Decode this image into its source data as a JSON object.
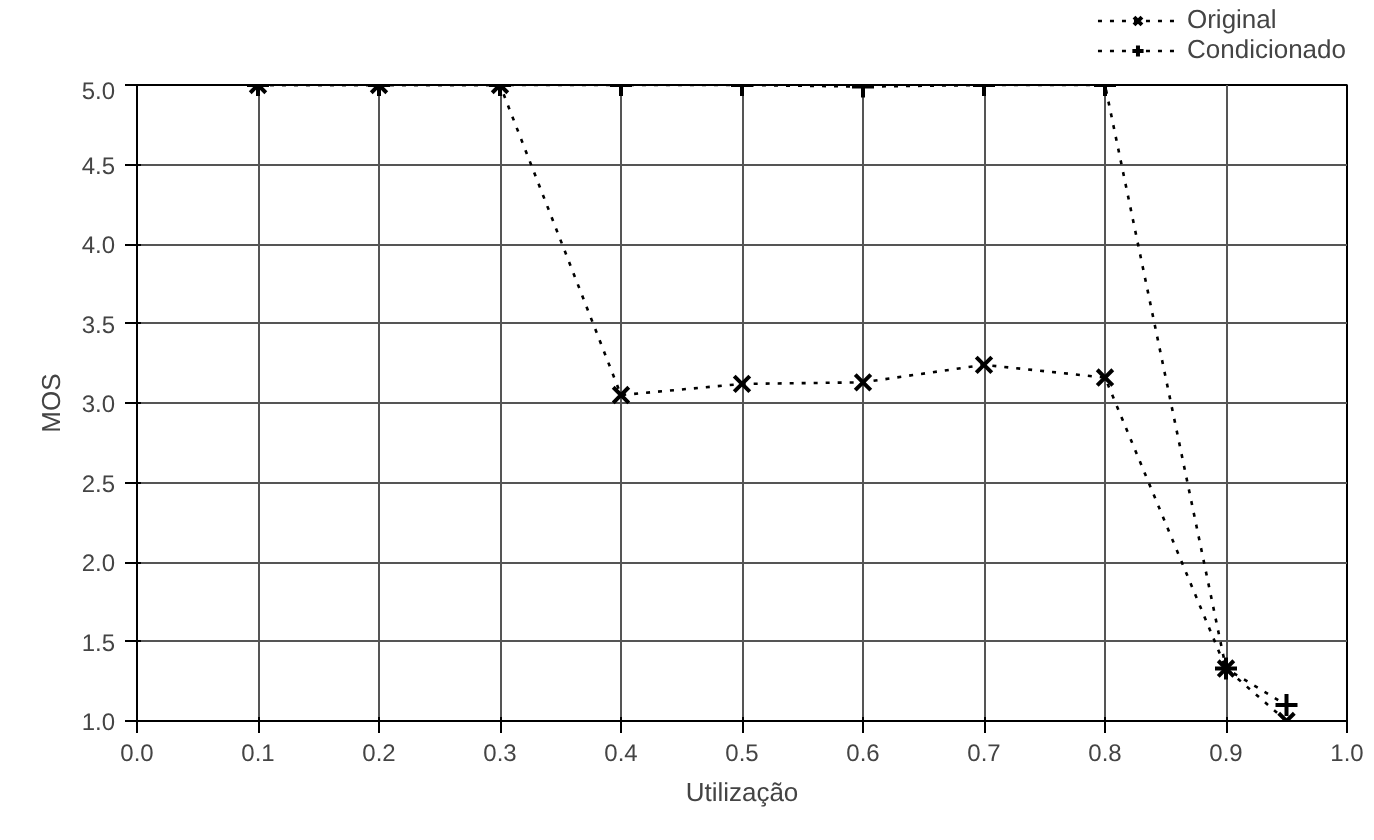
{
  "chart_data": {
    "type": "line",
    "xlabel": "Utilização",
    "ylabel": "MOS",
    "x": [
      0.1,
      0.2,
      0.3,
      0.4,
      0.5,
      0.6,
      0.7,
      0.8,
      0.9,
      0.95
    ],
    "series": [
      {
        "name": "Original",
        "color": "#000000",
        "marker": "x",
        "values": [
          5.0,
          5.0,
          5.0,
          3.05,
          3.12,
          3.13,
          3.24,
          3.16,
          1.33,
          1.0
        ]
      },
      {
        "name": "Condicionado",
        "color": "#000000",
        "marker": "cross",
        "values": [
          5.0,
          5.0,
          5.0,
          5.0,
          5.0,
          4.99,
          5.0,
          5.0,
          1.33,
          1.1
        ]
      }
    ],
    "xlim": [
      0.0,
      1.0
    ],
    "xticks": [
      {
        "value": 0,
        "label": "0.0"
      },
      0.1,
      0.2,
      0.3,
      0.4,
      0.5,
      0.6,
      0.7,
      0.8,
      0.9,
      {
        "value": 1,
        "label": "1.0"
      }
    ],
    "ylim": [
      1.0,
      5.0
    ],
    "yticks": [
      {
        "value": 1,
        "label": "1.0"
      },
      1.5,
      {
        "value": 2,
        "label": "2.0"
      },
      2.5,
      {
        "value": 3,
        "label": "3.0"
      },
      3.5,
      {
        "value": 4,
        "label": "4.0"
      },
      4.5,
      {
        "value": 5,
        "label": "5.0"
      }
    ],
    "grid": true,
    "legend": "top right",
    "line_style": "dotted"
  }
}
